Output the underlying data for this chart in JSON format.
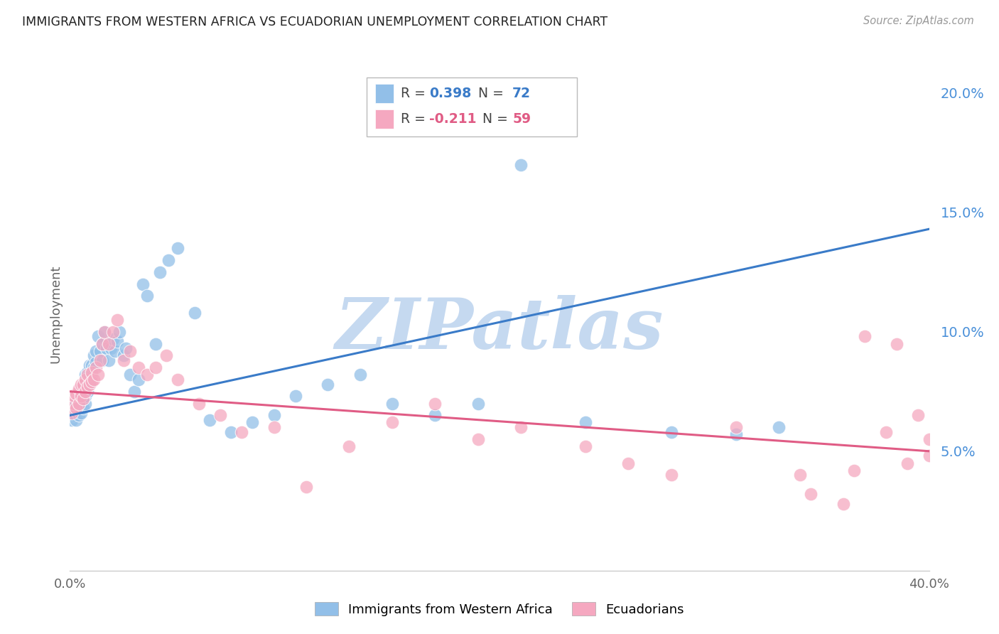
{
  "title": "IMMIGRANTS FROM WESTERN AFRICA VS ECUADORIAN UNEMPLOYMENT CORRELATION CHART",
  "source": "Source: ZipAtlas.com",
  "ylabel": "Unemployment",
  "x_min": 0.0,
  "x_max": 0.4,
  "y_min": 0.0,
  "y_max": 0.215,
  "y_ticks": [
    0.05,
    0.1,
    0.15,
    0.2
  ],
  "y_tick_labels": [
    "5.0%",
    "10.0%",
    "15.0%",
    "20.0%"
  ],
  "blue_color": "#92bfe8",
  "pink_color": "#f5a8c0",
  "blue_label": "Immigrants from Western Africa",
  "pink_label": "Ecuadorians",
  "blue_R": "0.398",
  "blue_N": "72",
  "pink_R": "-0.211",
  "pink_N": "59",
  "blue_line_color": "#3a7bc8",
  "pink_line_color": "#e05c85",
  "right_tick_color": "#4a90d9",
  "watermark": "ZIPatlas",
  "watermark_color": "#c5d9f0",
  "background_color": "#ffffff",
  "grid_color": "#e0e0e0",
  "blue_x": [
    0.001,
    0.002,
    0.002,
    0.003,
    0.003,
    0.003,
    0.004,
    0.004,
    0.004,
    0.005,
    0.005,
    0.005,
    0.005,
    0.006,
    0.006,
    0.006,
    0.006,
    0.007,
    0.007,
    0.007,
    0.007,
    0.008,
    0.008,
    0.008,
    0.009,
    0.009,
    0.009,
    0.01,
    0.01,
    0.011,
    0.011,
    0.012,
    0.012,
    0.013,
    0.014,
    0.015,
    0.015,
    0.016,
    0.017,
    0.018,
    0.019,
    0.02,
    0.021,
    0.022,
    0.023,
    0.025,
    0.026,
    0.028,
    0.03,
    0.032,
    0.034,
    0.036,
    0.04,
    0.042,
    0.046,
    0.05,
    0.058,
    0.065,
    0.075,
    0.085,
    0.095,
    0.105,
    0.12,
    0.135,
    0.15,
    0.17,
    0.19,
    0.21,
    0.24,
    0.28,
    0.31,
    0.33
  ],
  "blue_y": [
    0.063,
    0.065,
    0.068,
    0.063,
    0.067,
    0.07,
    0.065,
    0.068,
    0.072,
    0.066,
    0.07,
    0.073,
    0.076,
    0.068,
    0.072,
    0.075,
    0.078,
    0.07,
    0.073,
    0.078,
    0.082,
    0.075,
    0.079,
    0.083,
    0.078,
    0.082,
    0.086,
    0.082,
    0.086,
    0.085,
    0.09,
    0.087,
    0.092,
    0.098,
    0.092,
    0.088,
    0.095,
    0.1,
    0.093,
    0.088,
    0.093,
    0.097,
    0.092,
    0.096,
    0.1,
    0.09,
    0.093,
    0.082,
    0.075,
    0.08,
    0.12,
    0.115,
    0.095,
    0.125,
    0.13,
    0.135,
    0.108,
    0.063,
    0.058,
    0.062,
    0.065,
    0.073,
    0.078,
    0.082,
    0.07,
    0.065,
    0.07,
    0.17,
    0.062,
    0.058,
    0.057,
    0.06
  ],
  "pink_x": [
    0.001,
    0.002,
    0.002,
    0.003,
    0.003,
    0.004,
    0.004,
    0.005,
    0.005,
    0.006,
    0.006,
    0.007,
    0.007,
    0.008,
    0.008,
    0.009,
    0.01,
    0.01,
    0.011,
    0.012,
    0.013,
    0.014,
    0.015,
    0.016,
    0.018,
    0.02,
    0.022,
    0.025,
    0.028,
    0.032,
    0.036,
    0.04,
    0.045,
    0.05,
    0.06,
    0.07,
    0.08,
    0.095,
    0.11,
    0.13,
    0.15,
    0.17,
    0.19,
    0.21,
    0.24,
    0.26,
    0.28,
    0.31,
    0.34,
    0.36,
    0.37,
    0.38,
    0.39,
    0.4,
    0.4,
    0.395,
    0.385,
    0.365,
    0.345
  ],
  "pink_y": [
    0.066,
    0.07,
    0.073,
    0.068,
    0.074,
    0.07,
    0.076,
    0.073,
    0.078,
    0.072,
    0.078,
    0.075,
    0.08,
    0.077,
    0.082,
    0.078,
    0.083,
    0.079,
    0.08,
    0.085,
    0.082,
    0.088,
    0.095,
    0.1,
    0.095,
    0.1,
    0.105,
    0.088,
    0.092,
    0.085,
    0.082,
    0.085,
    0.09,
    0.08,
    0.07,
    0.065,
    0.058,
    0.06,
    0.035,
    0.052,
    0.062,
    0.07,
    0.055,
    0.06,
    0.052,
    0.045,
    0.04,
    0.06,
    0.04,
    0.028,
    0.098,
    0.058,
    0.045,
    0.055,
    0.048,
    0.065,
    0.095,
    0.042,
    0.032
  ]
}
